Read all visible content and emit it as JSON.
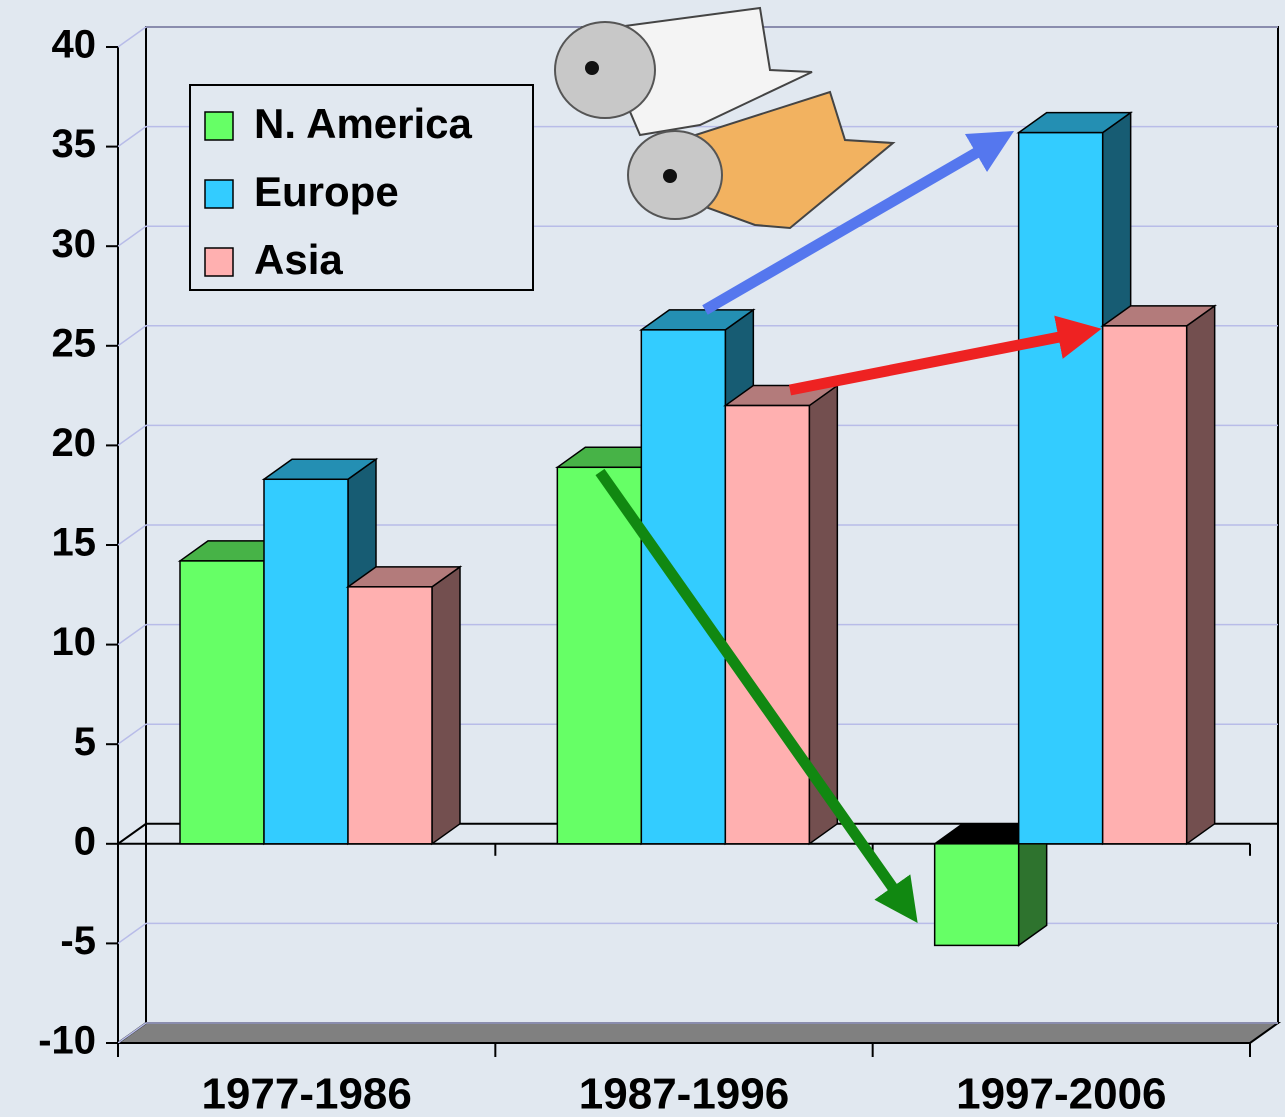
{
  "chart_data": {
    "type": "bar3d",
    "categories": [
      "1977-1986",
      "1987-1996",
      "1997-2006"
    ],
    "series": [
      {
        "name": "N. America",
        "color": "#66ff66",
        "values": [
          14.2,
          18.9,
          -5.1
        ]
      },
      {
        "name": "Europe",
        "color": "#33ccff",
        "values": [
          18.3,
          25.8,
          35.7
        ]
      },
      {
        "name": "Asia",
        "color": "#ffb0b0",
        "values": [
          12.9,
          22.0,
          26.0
        ]
      }
    ],
    "ylim": [
      -10,
      40
    ],
    "yticks": [
      -10,
      -5,
      0,
      5,
      10,
      15,
      20,
      25,
      30,
      35,
      40
    ],
    "grid": true,
    "legend": "top-left"
  }
}
